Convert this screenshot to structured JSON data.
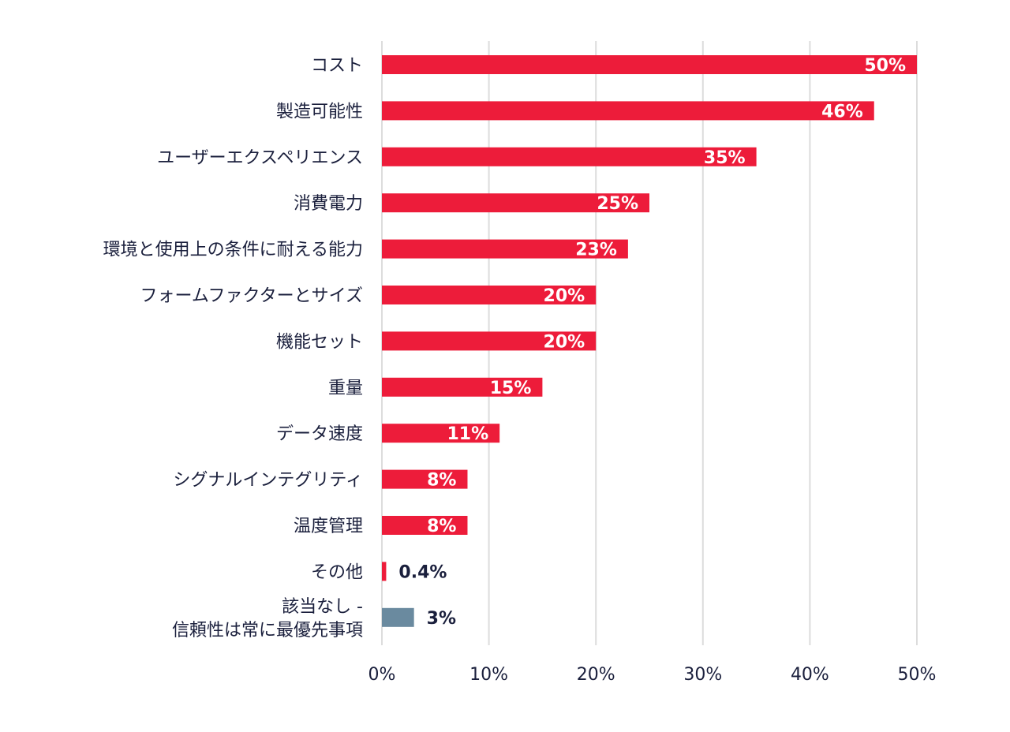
{
  "chart_data": {
    "type": "bar",
    "orientation": "horizontal",
    "categories": [
      [
        "コスト"
      ],
      [
        "製造可能性"
      ],
      [
        "ユーザーエクスペリエンス"
      ],
      [
        "消費電力"
      ],
      [
        "環境と使用上の条件に耐える能力"
      ],
      [
        "フォームファクターとサイズ"
      ],
      [
        "機能セット"
      ],
      [
        "重量"
      ],
      [
        "データ速度"
      ],
      [
        "シグナルインテグリティ"
      ],
      [
        "温度管理"
      ],
      [
        "その他"
      ],
      [
        "該当なし -",
        "信頼性は常に最優先事項"
      ]
    ],
    "values": [
      50,
      46,
      35,
      25,
      23,
      20,
      20,
      15,
      11,
      8,
      8,
      0.4,
      3
    ],
    "value_labels": [
      "50%",
      "46%",
      "35%",
      "25%",
      "23%",
      "20%",
      "20%",
      "15%",
      "11%",
      "8%",
      "8%",
      "0.4%",
      "3%"
    ],
    "xlim": [
      0,
      50
    ],
    "x_ticks": [
      "0%",
      "10%",
      "20%",
      "30%",
      "40%",
      "50%"
    ],
    "grid": true,
    "colors": {
      "primary": "#ed1c3a",
      "na": "#6a8a9f",
      "text": "#1a1f3c",
      "grid": "#dcdcdc"
    },
    "bar_colors": [
      "primary",
      "primary",
      "primary",
      "primary",
      "primary",
      "primary",
      "primary",
      "primary",
      "primary",
      "primary",
      "primary",
      "primary",
      "na"
    ],
    "label_inside": [
      true,
      true,
      true,
      true,
      true,
      true,
      true,
      true,
      true,
      true,
      true,
      false,
      false
    ]
  }
}
